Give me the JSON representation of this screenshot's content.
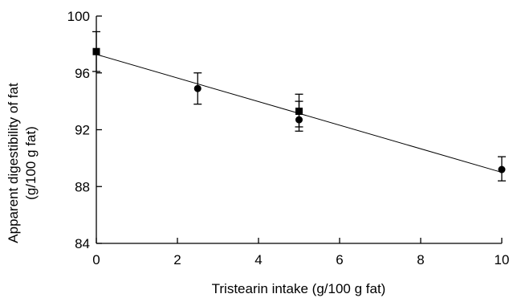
{
  "chart_data": {
    "type": "scatter",
    "xlabel": "Tristearin intake (g/100 g fat)",
    "ylabel_line1": "Apparent  digestibility of fat",
    "ylabel_line2": "(g/100 g fat)",
    "xlim": [
      0,
      10
    ],
    "ylim": [
      84,
      100
    ],
    "x_ticks": [
      0,
      2,
      4,
      6,
      8,
      10
    ],
    "x_tick_labels": [
      "0",
      "2",
      "4",
      "6",
      "8",
      "10"
    ],
    "y_ticks": [
      84,
      88,
      92,
      96,
      100
    ],
    "y_tick_labels": [
      "84",
      "88",
      "92",
      "96",
      "100"
    ],
    "grid": false,
    "series": [
      {
        "marker": "circle",
        "points": [
          {
            "x": 2.5,
            "y": 94.9,
            "err_low": 93.8,
            "err_high": 96.0
          },
          {
            "x": 5.0,
            "y": 92.7,
            "err_low": 91.9,
            "err_high": 94.0
          },
          {
            "x": 10.0,
            "y": 89.2,
            "err_low": 88.4,
            "err_high": 90.1
          }
        ]
      },
      {
        "marker": "square",
        "points": [
          {
            "x": 0.0,
            "y": 97.5,
            "err_low": 96.1,
            "err_high": 98.9
          },
          {
            "x": 5.0,
            "y": 93.3,
            "err_low": 92.2,
            "err_high": 94.5
          }
        ]
      }
    ],
    "regression_line": {
      "x": [
        0,
        10
      ],
      "y": [
        97.3,
        89.0
      ]
    },
    "color": "#000000"
  }
}
